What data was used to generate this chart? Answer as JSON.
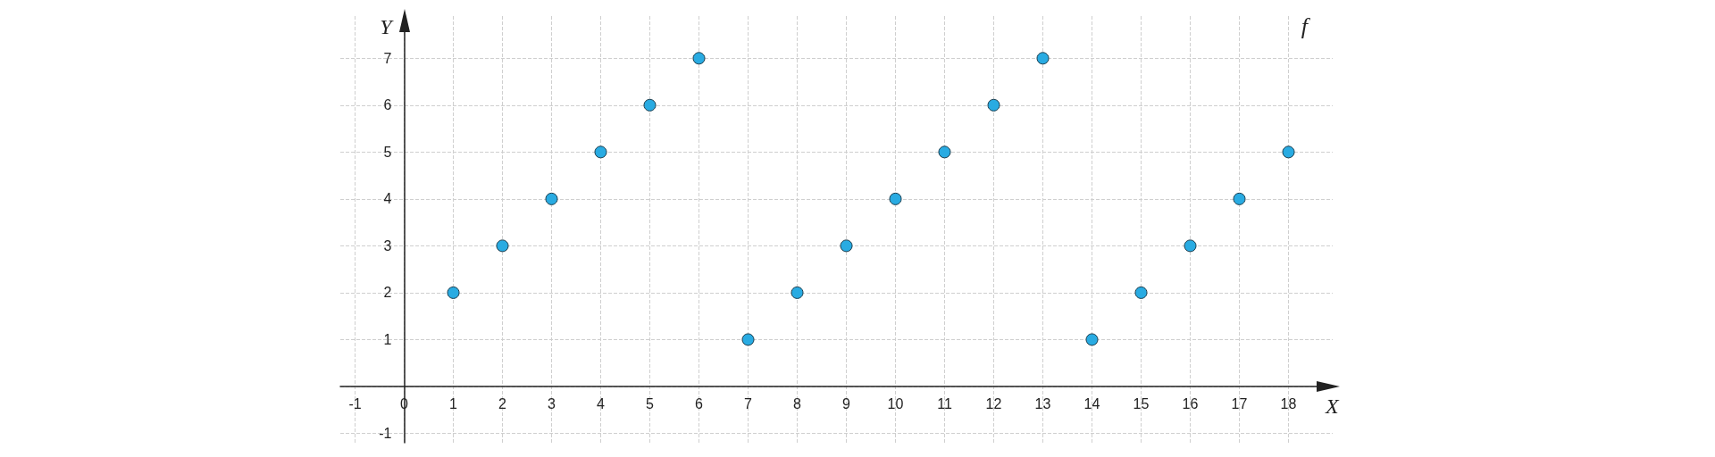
{
  "chart_data": {
    "type": "scatter",
    "xlabel": "X",
    "ylabel": "Y",
    "annotations": [
      "f"
    ],
    "x": [
      1,
      2,
      3,
      4,
      5,
      6,
      7,
      8,
      9,
      10,
      11,
      12,
      13,
      14,
      15,
      16,
      17,
      18
    ],
    "series": [
      {
        "color": "#29abe2",
        "values": [
          2,
          3,
          4,
          5,
          6,
          7,
          1,
          2,
          3,
          4,
          5,
          6,
          7,
          1,
          2,
          3,
          4,
          5
        ]
      }
    ],
    "xlim": [
      -1.3,
      18.9
    ],
    "ylim": [
      -1.2,
      7.9
    ],
    "xticks": [
      -1,
      0,
      1,
      2,
      3,
      4,
      5,
      6,
      7,
      8,
      9,
      10,
      11,
      12,
      13,
      14,
      15,
      16,
      17,
      18
    ],
    "yticks": [
      -1,
      {
        "value": 0,
        "label": null
      },
      1,
      2,
      3,
      4,
      5,
      6,
      7
    ],
    "grid": true,
    "marker": "circle"
  }
}
